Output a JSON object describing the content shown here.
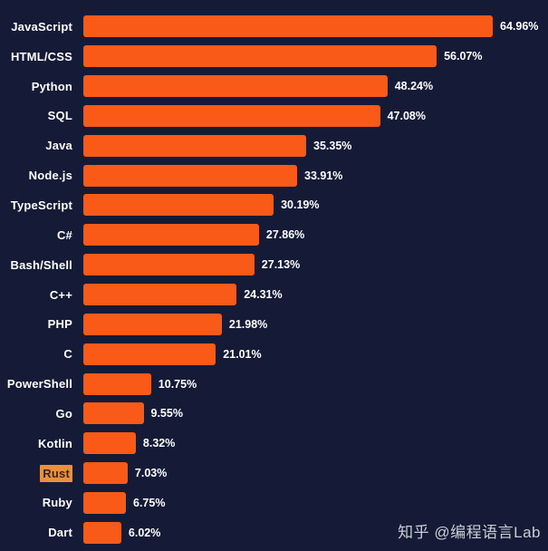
{
  "chart_data": {
    "type": "bar",
    "orientation": "horizontal",
    "title": "",
    "xlabel": "",
    "ylabel": "",
    "xlim": [
      0,
      65
    ],
    "grid": false,
    "legend": false,
    "categories": [
      "JavaScript",
      "HTML/CSS",
      "Python",
      "SQL",
      "Java",
      "Node.js",
      "TypeScript",
      "C#",
      "Bash/Shell",
      "C++",
      "PHP",
      "C",
      "PowerShell",
      "Go",
      "Kotlin",
      "Rust",
      "Ruby",
      "Dart"
    ],
    "values": [
      64.96,
      56.07,
      48.24,
      47.08,
      35.35,
      33.91,
      30.19,
      27.86,
      27.13,
      24.31,
      21.98,
      21.01,
      10.75,
      9.55,
      8.32,
      7.03,
      6.75,
      6.02
    ],
    "value_labels": [
      "64.96%",
      "56.07%",
      "48.24%",
      "47.08%",
      "35.35%",
      "33.91%",
      "30.19%",
      "27.86%",
      "27.13%",
      "24.31%",
      "21.98%",
      "21.01%",
      "10.75%",
      "9.55%",
      "8.32%",
      "7.03%",
      "6.75%",
      "6.02%"
    ],
    "highlighted_category": "Rust",
    "colors": {
      "background": "#151b36",
      "bar": "#fa5a17",
      "label_text": "#ffffff",
      "value_text": "#ffffff",
      "highlight_background": "#e79140",
      "highlight_text": "#3a2315"
    }
  },
  "watermark": {
    "text": "知乎 @编程语言Lab"
  }
}
